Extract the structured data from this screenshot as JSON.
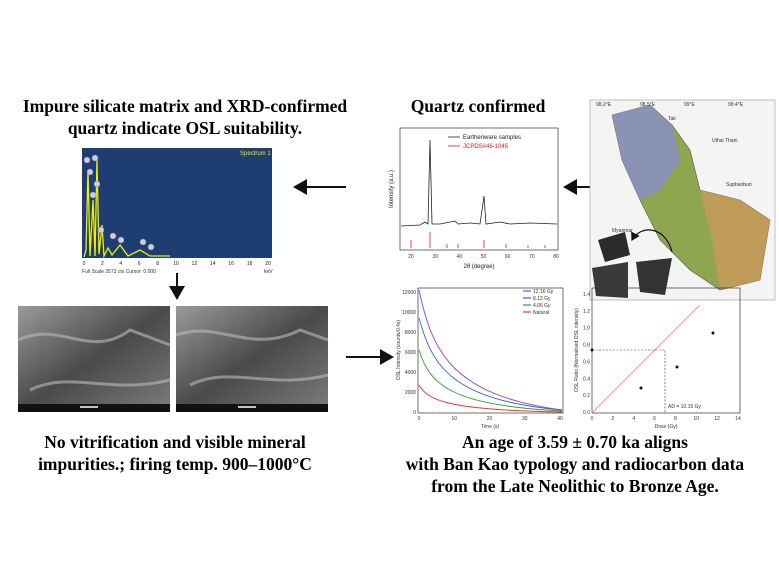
{
  "eds": {
    "caption": [
      "Impure silicate matrix and XRD-confirmed",
      "quartz indicate OSL suitability."
    ],
    "spectrum_label": "Spectrum 1",
    "footer": "Full Scale 2573 cts Cursor: 0.000",
    "unit": "keV",
    "x_ticks": [
      "0",
      "2",
      "4",
      "6",
      "8",
      "10",
      "12",
      "14",
      "16",
      "18",
      "20"
    ]
  },
  "xrd": {
    "caption": "Quartz confirmed",
    "legend": [
      "Earthenware samples",
      "JCPDS#46-1045"
    ],
    "y_label": "Intensity (a.u.)",
    "x_label": "2θ (degree)",
    "x_ticks": [
      "20",
      "30",
      "40",
      "50",
      "60",
      "70",
      "80"
    ]
  },
  "map": {
    "longitudes": [
      "98.2°E",
      "98.5°E",
      "99°E",
      "99.4°E"
    ],
    "places": [
      "Tak",
      "Uthai Thani",
      "Suphanburi",
      "Myanmar"
    ]
  },
  "sem": {
    "caption": [
      "No vitrification and visible mineral",
      "impurities.; firing temp. 900–1000°C"
    ]
  },
  "osl": {
    "caption": [
      "An age of 3.59 ± 0.70 ka aligns",
      "with Ban Kao typology and radiocarbon data",
      "from the Late Neolithic to Bronze Age."
    ],
    "decay": {
      "legend": [
        "12.16 Gy",
        "8.12 Gy",
        "4.06 Gy",
        "Natural"
      ],
      "y_label": "OSL Intensity (counts/0.4s)",
      "x_label": "Time (s)",
      "y_ticks": [
        "0",
        "2000",
        "4000",
        "6000",
        "8000",
        "10000",
        "12000"
      ],
      "x_ticks": [
        "0",
        "10",
        "20",
        "30",
        "40"
      ]
    },
    "dose": {
      "annotation": "AD = 10.15 Gy",
      "y_label": "OSL Ratio (Normalised OSL intensity)",
      "x_label": "Dose (Gy)",
      "y_ticks": [
        "0.0",
        "0.2",
        "0.4",
        "0.6",
        "0.8",
        "1.0",
        "1.2",
        "1.4"
      ],
      "x_ticks": [
        "0",
        "2",
        "4",
        "6",
        "8",
        "10",
        "12",
        "14"
      ]
    }
  }
}
